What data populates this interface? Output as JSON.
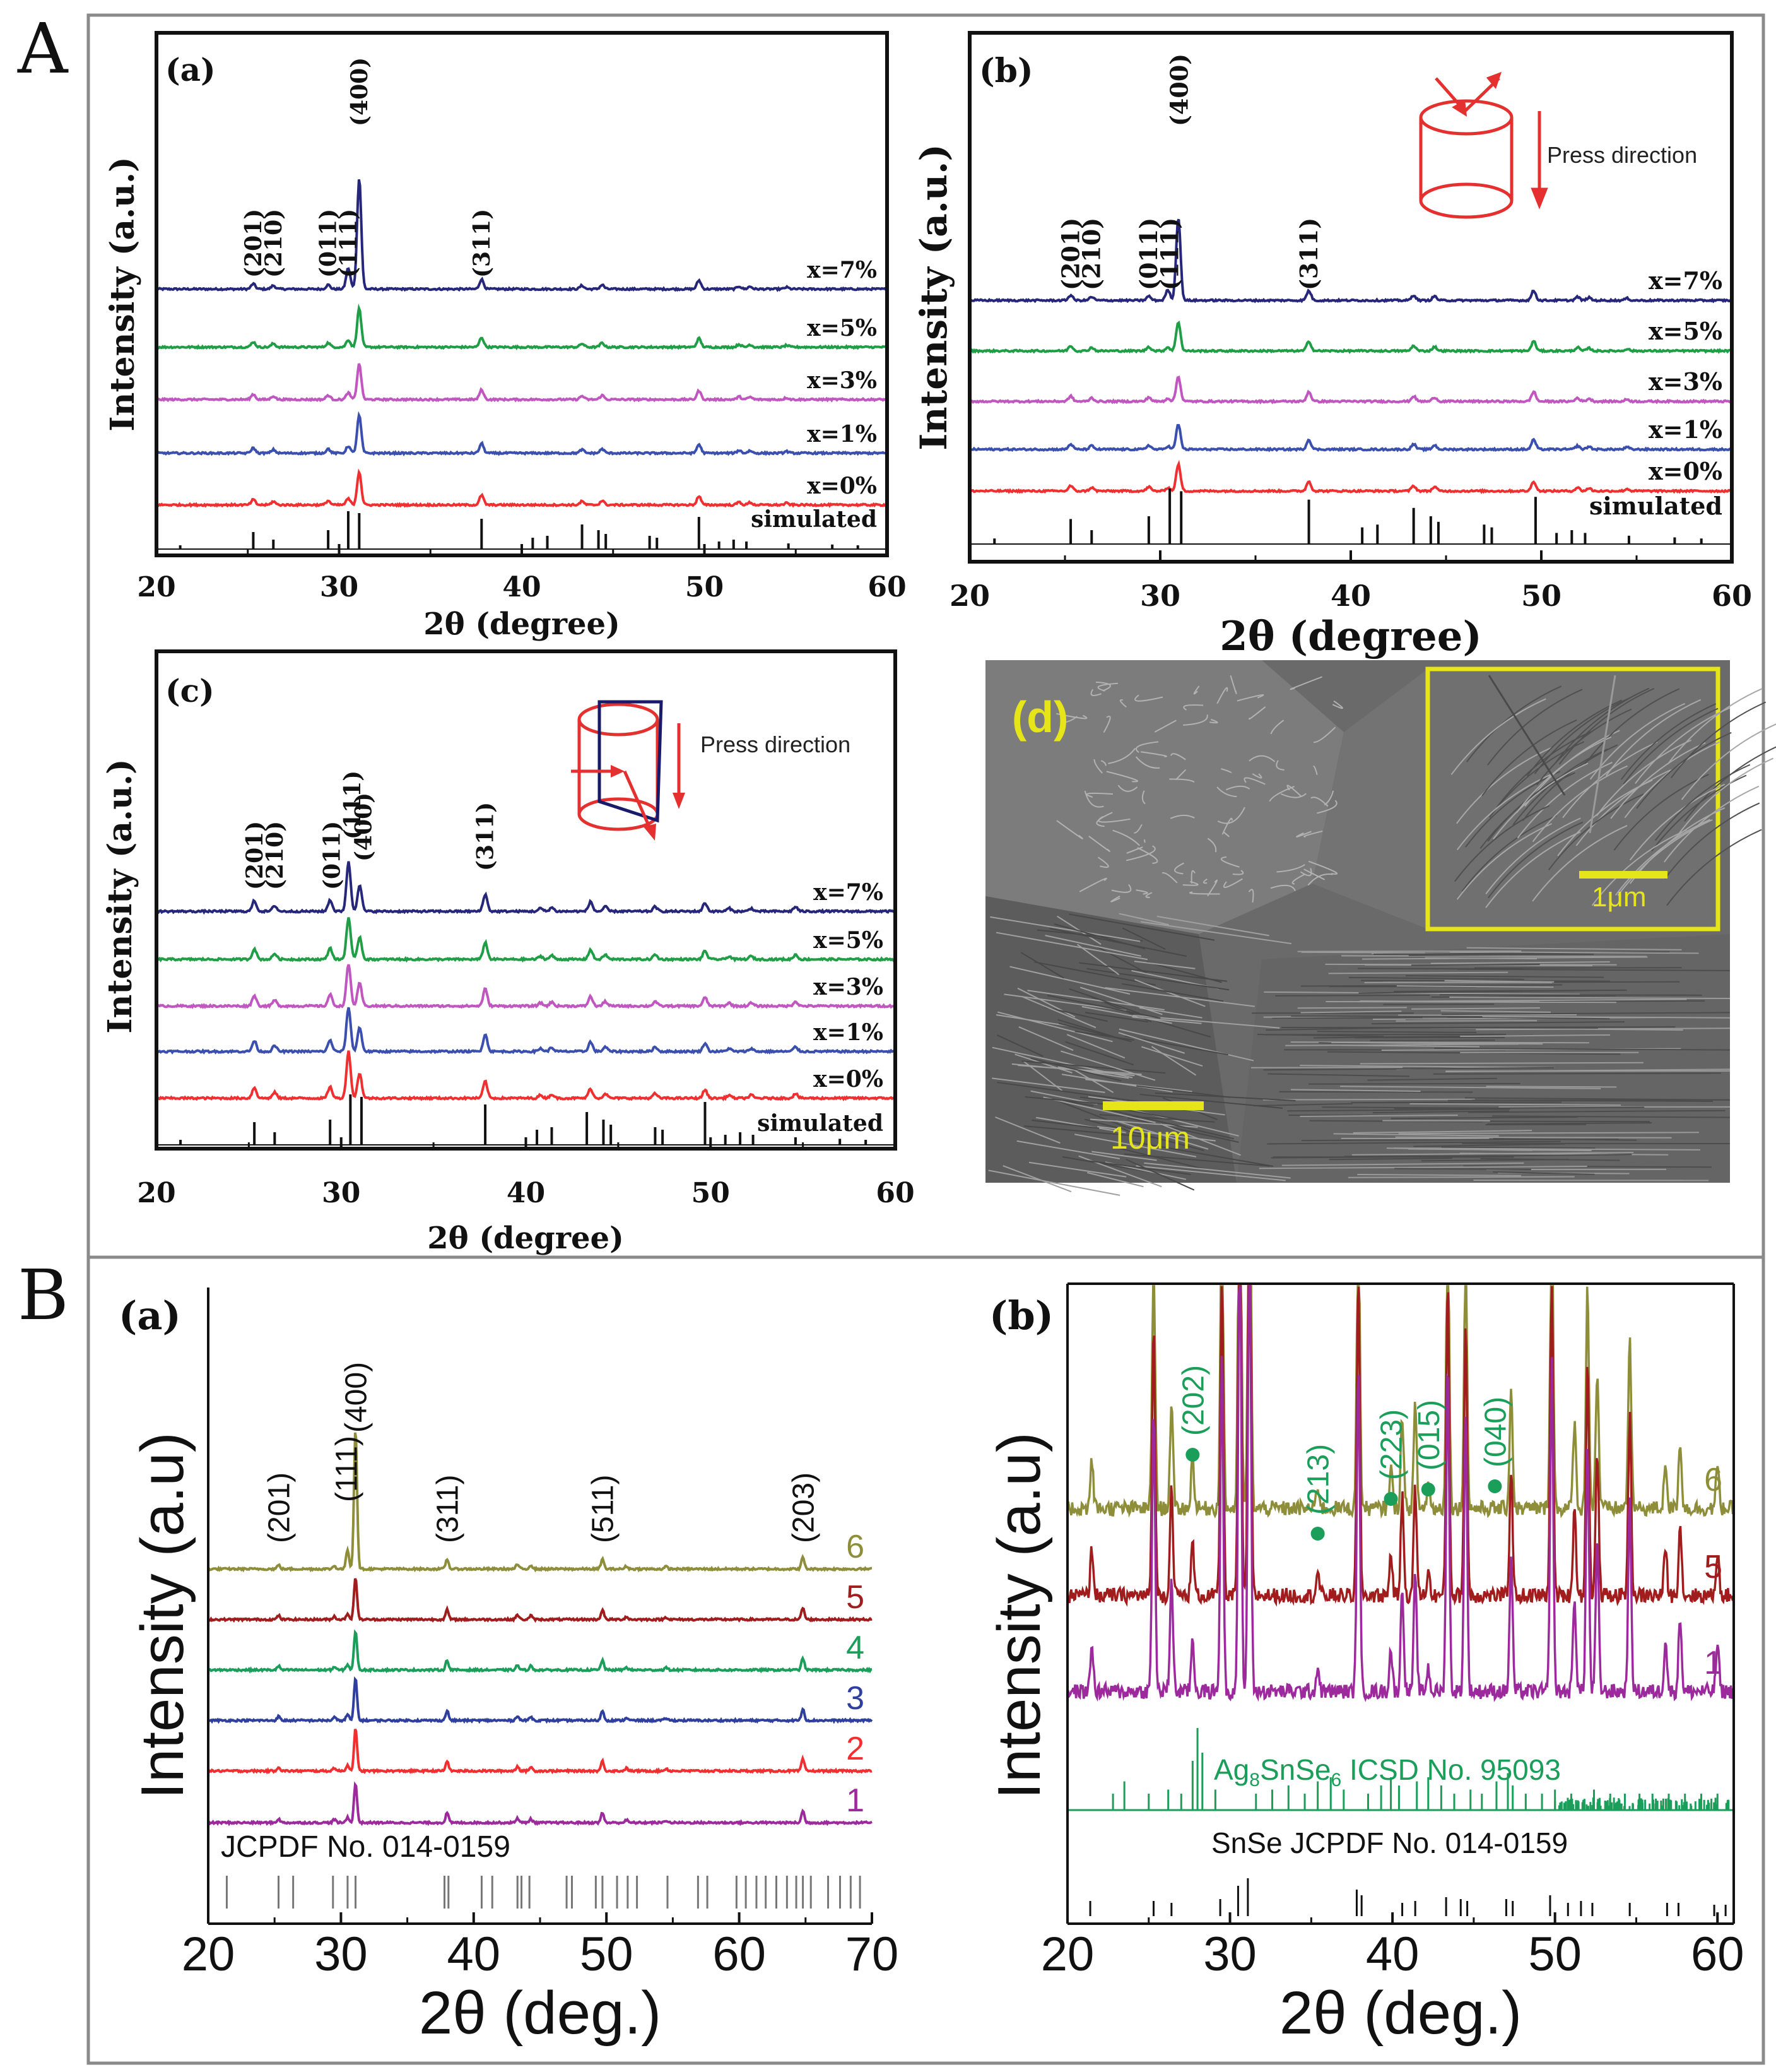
{
  "section_labels": {
    "A": "A",
    "B": "B"
  },
  "colors": {
    "black": "#111111",
    "navy": "#26267a",
    "green": "#1f9e45",
    "magenta": "#c056c0",
    "blue": "#3a4fae",
    "red": "#f03030",
    "olive": "#8e8e3a",
    "darkred": "#a11d1d",
    "purple": "#9c2a9c",
    "bgreen": "#1a9e5a",
    "blue3": "#2f3f9e",
    "yellow": "#e5e51a"
  },
  "chart_data": [
    {
      "id": "Aa",
      "type": "line",
      "panel_label": "(a)",
      "xlabel": "2θ (degree)",
      "ylabel": "Intensity (a.u.)",
      "xlim": [
        20,
        60
      ],
      "xticks": [
        "20",
        "30",
        "40",
        "50",
        "60"
      ],
      "main_peaks": [
        [
          30.5,
          0.6
        ],
        [
          31.1,
          3.2
        ]
      ],
      "minor_peaks": [
        [
          25.3,
          0.15
        ],
        [
          26.4,
          0.1
        ],
        [
          29.4,
          0.12
        ],
        [
          37.8,
          0.28
        ],
        [
          43.3,
          0.1
        ],
        [
          44.4,
          0.12
        ],
        [
          49.7,
          0.25
        ],
        [
          51.9,
          0.08
        ],
        [
          52.5,
          0.07
        ],
        [
          54.5,
          0.05
        ]
      ],
      "series": [
        {
          "name": "x=7%",
          "color_key": "navy"
        },
        {
          "name": "x=5%",
          "color_key": "green"
        },
        {
          "name": "x=3%",
          "color_key": "magenta"
        },
        {
          "name": "x=1%",
          "color_key": "blue"
        },
        {
          "name": "x=0%",
          "color_key": "red"
        }
      ],
      "simulated_label": "simulated",
      "sticks": [
        [
          21.3,
          0.1
        ],
        [
          25.3,
          0.45
        ],
        [
          26.4,
          0.25
        ],
        [
          29.4,
          0.5
        ],
        [
          30.5,
          1.0
        ],
        [
          31.1,
          0.95
        ],
        [
          37.8,
          0.8
        ],
        [
          40.6,
          0.3
        ],
        [
          41.4,
          0.35
        ],
        [
          43.3,
          0.65
        ],
        [
          44.2,
          0.5
        ],
        [
          44.6,
          0.4
        ],
        [
          47.0,
          0.35
        ],
        [
          47.4,
          0.3
        ],
        [
          49.7,
          0.85
        ],
        [
          50.8,
          0.2
        ],
        [
          51.6,
          0.25
        ],
        [
          52.3,
          0.2
        ],
        [
          54.6,
          0.15
        ],
        [
          57.0,
          0.12
        ],
        [
          58.4,
          0.1
        ]
      ],
      "hkl": [
        {
          "label": "(201)",
          "x": 25.3
        },
        {
          "label": "(210)",
          "x": 26.4
        },
        {
          "label": "(011)",
          "x": 29.4
        },
        {
          "label": "(111)",
          "x": 30.5
        },
        {
          "label": "(400)",
          "x": 31.1
        },
        {
          "label": "(311)",
          "x": 37.8
        }
      ]
    },
    {
      "id": "Ab",
      "type": "line",
      "panel_label": "(b)",
      "xlabel": "2θ (degree)",
      "ylabel": "Intensity (a.u.)",
      "xlim": [
        20,
        60
      ],
      "xticks": [
        "20",
        "30",
        "40",
        "50",
        "60"
      ],
      "main_peaks": [
        [
          30.4,
          0.3
        ],
        [
          30.95,
          2.4
        ]
      ],
      "minor_peaks": [
        [
          25.3,
          0.15
        ],
        [
          26.4,
          0.1
        ],
        [
          29.4,
          0.12
        ],
        [
          37.8,
          0.28
        ],
        [
          43.3,
          0.15
        ],
        [
          44.4,
          0.12
        ],
        [
          49.6,
          0.28
        ],
        [
          51.9,
          0.1
        ],
        [
          52.5,
          0.08
        ],
        [
          54.5,
          0.06
        ]
      ],
      "series": [
        {
          "name": "x=7%",
          "color_key": "navy"
        },
        {
          "name": "x=5%",
          "color_key": "green"
        },
        {
          "name": "x=3%",
          "color_key": "magenta"
        },
        {
          "name": "x=1%",
          "color_key": "blue"
        },
        {
          "name": "x=0%",
          "color_key": "red"
        }
      ],
      "simulated_label": "simulated",
      "sticks": [
        [
          21.3,
          0.1
        ],
        [
          25.3,
          0.45
        ],
        [
          26.4,
          0.25
        ],
        [
          29.4,
          0.5
        ],
        [
          30.5,
          1.0
        ],
        [
          31.1,
          0.95
        ],
        [
          37.8,
          0.8
        ],
        [
          40.6,
          0.3
        ],
        [
          41.4,
          0.35
        ],
        [
          43.3,
          0.65
        ],
        [
          44.2,
          0.5
        ],
        [
          44.6,
          0.4
        ],
        [
          47.0,
          0.35
        ],
        [
          47.4,
          0.3
        ],
        [
          49.7,
          0.85
        ],
        [
          50.8,
          0.2
        ],
        [
          51.6,
          0.25
        ],
        [
          52.3,
          0.2
        ],
        [
          54.6,
          0.15
        ],
        [
          57.0,
          0.12
        ],
        [
          58.4,
          0.1
        ]
      ],
      "hkl": [
        {
          "label": "(201)",
          "x": 25.3
        },
        {
          "label": "(210)",
          "x": 26.4
        },
        {
          "label": "(011)",
          "x": 29.4
        },
        {
          "label": "(111)",
          "x": 30.5
        },
        {
          "label": "(400)",
          "x": 31.0
        },
        {
          "label": "(311)",
          "x": 37.8
        }
      ],
      "inset_label": "Press direction"
    },
    {
      "id": "Ac",
      "type": "line",
      "panel_label": "(c)",
      "xlabel": "2θ (degree)",
      "ylabel": "Intensity (a.u.)",
      "xlim": [
        20,
        60
      ],
      "xticks": [
        "20",
        "30",
        "40",
        "50",
        "60"
      ],
      "main_peaks": [
        [
          30.4,
          1.3
        ],
        [
          31.0,
          0.7
        ]
      ],
      "minor_peaks": [
        [
          25.3,
          0.28
        ],
        [
          26.4,
          0.15
        ],
        [
          29.4,
          0.3
        ],
        [
          37.8,
          0.45
        ],
        [
          40.8,
          0.08
        ],
        [
          41.4,
          0.1
        ],
        [
          43.5,
          0.25
        ],
        [
          44.3,
          0.12
        ],
        [
          47.0,
          0.12
        ],
        [
          49.7,
          0.22
        ],
        [
          51.0,
          0.08
        ],
        [
          52.2,
          0.08
        ],
        [
          54.6,
          0.12
        ]
      ],
      "series": [
        {
          "name": "x=7%",
          "color_key": "navy"
        },
        {
          "name": "x=5%",
          "color_key": "green"
        },
        {
          "name": "x=3%",
          "color_key": "magenta"
        },
        {
          "name": "x=1%",
          "color_key": "blue"
        },
        {
          "name": "x=0%",
          "color_key": "red"
        }
      ],
      "simulated_label": "simulated",
      "sticks": [
        [
          21.3,
          0.1
        ],
        [
          25.3,
          0.45
        ],
        [
          26.4,
          0.25
        ],
        [
          29.4,
          0.5
        ],
        [
          30.5,
          1.0
        ],
        [
          31.1,
          0.95
        ],
        [
          37.8,
          0.8
        ],
        [
          40.6,
          0.3
        ],
        [
          41.4,
          0.35
        ],
        [
          43.3,
          0.65
        ],
        [
          44.2,
          0.5
        ],
        [
          44.6,
          0.4
        ],
        [
          47.0,
          0.35
        ],
        [
          47.4,
          0.3
        ],
        [
          49.7,
          0.85
        ],
        [
          50.8,
          0.2
        ],
        [
          51.6,
          0.25
        ],
        [
          52.3,
          0.2
        ],
        [
          54.6,
          0.15
        ],
        [
          57.0,
          0.12
        ],
        [
          58.4,
          0.1
        ]
      ],
      "hkl": [
        {
          "label": "(201)",
          "x": 25.3
        },
        {
          "label": "(210)",
          "x": 26.4
        },
        {
          "label": "(011)",
          "x": 29.5
        },
        {
          "label": "(111)",
          "x": 30.6
        },
        {
          "label": "(400)",
          "x": 31.2
        },
        {
          "label": "(311)",
          "x": 37.8
        }
      ],
      "inset_label": "Press direction"
    },
    {
      "id": "Ba",
      "type": "line",
      "panel_label": "(a)",
      "xlabel": "2θ (deg.)",
      "ylabel": "Intensity (a.u)",
      "xlim": [
        20,
        70
      ],
      "xticks": [
        "20",
        "30",
        "40",
        "50",
        "60",
        "70"
      ],
      "main_peaks": [
        [
          30.5,
          0.5
        ],
        [
          31.1,
          3.6
        ]
      ],
      "minor_peaks": [
        [
          25.3,
          0.1
        ],
        [
          29.5,
          0.08
        ],
        [
          38.0,
          0.25
        ],
        [
          43.3,
          0.12
        ],
        [
          44.3,
          0.1
        ],
        [
          49.7,
          0.25
        ],
        [
          51.5,
          0.07
        ],
        [
          54.5,
          0.06
        ],
        [
          64.8,
          0.3
        ]
      ],
      "series": [
        {
          "name": "6",
          "color_key": "olive"
        },
        {
          "name": "5",
          "color_key": "darkred"
        },
        {
          "name": "4",
          "color_key": "bgreen"
        },
        {
          "name": "3",
          "color_key": "blue3"
        },
        {
          "name": "2",
          "color_key": "red"
        },
        {
          "name": "1",
          "color_key": "purple"
        }
      ],
      "reference_label": "JCPDF No. 014-0159",
      "sticks": [
        21.4,
        25.3,
        26.4,
        29.4,
        30.5,
        31.1,
        37.8,
        38.1,
        40.6,
        41.4,
        43.3,
        43.6,
        44.2,
        47.0,
        47.4,
        49.2,
        49.7,
        50.8,
        51.6,
        52.3,
        54.6,
        56.9,
        57.6,
        59.8,
        60.5,
        61.3,
        62.0,
        62.8,
        63.6,
        64.3,
        64.8,
        65.4,
        66.7,
        67.6,
        68.4,
        69.1
      ],
      "hkl": [
        {
          "label": "(201)",
          "x": 25.3
        },
        {
          "label": "(111)",
          "x": 30.4
        },
        {
          "label": "(400)",
          "x": 31.1
        },
        {
          "label": "(311)",
          "x": 38.0
        },
        {
          "label": "(511)",
          "x": 49.7
        },
        {
          "label": "(203)",
          "x": 64.8
        }
      ]
    },
    {
      "id": "Bb",
      "type": "line",
      "panel_label": "(b)",
      "xlabel": "2θ (deg.)",
      "ylabel": "Intensity (a.u)",
      "xlim": [
        20,
        61
      ],
      "xticks": [
        "20",
        "30",
        "40",
        "50",
        "60"
      ],
      "main_peaks": [
        [
          25.3,
          3.0
        ],
        [
          26.4,
          1.2
        ],
        [
          29.5,
          3.5
        ],
        [
          30.6,
          5.0
        ],
        [
          31.2,
          5.0
        ],
        [
          37.9,
          3.5
        ],
        [
          40.6,
          1.1
        ],
        [
          41.4,
          1.2
        ],
        [
          43.4,
          3.5
        ],
        [
          44.5,
          3.0
        ],
        [
          47.3,
          1.4
        ],
        [
          49.8,
          3.5
        ],
        [
          51.2,
          1.0
        ],
        [
          52.0,
          2.6
        ],
        [
          52.6,
          1.6
        ],
        [
          54.6,
          2.0
        ],
        [
          56.8,
          0.55
        ],
        [
          57.7,
          0.8
        ],
        [
          60.0,
          0.5
        ]
      ],
      "minor_peaks": [
        [
          21.5,
          0.5
        ],
        [
          27.7,
          0.55
        ],
        [
          35.4,
          0.25
        ],
        [
          39.9,
          0.45
        ],
        [
          42.2,
          0.25
        ]
      ],
      "series": [
        {
          "name": "6",
          "color_key": "olive"
        },
        {
          "name": "5",
          "color_key": "darkred"
        },
        {
          "name": "1",
          "color_key": "purple"
        }
      ],
      "ref1_label": "ICSD No. 95093",
      "ref2_label": "SnSe JCPDF No. 014-0159",
      "sticks_ag8": [
        [
          22.8,
          0.2
        ],
        [
          23.5,
          0.35
        ],
        [
          25.0,
          0.2
        ],
        [
          26.2,
          0.25
        ],
        [
          27.0,
          0.2
        ],
        [
          27.7,
          0.6
        ],
        [
          28.0,
          1.0
        ],
        [
          28.3,
          0.7
        ],
        [
          29.1,
          0.25
        ],
        [
          31.6,
          0.2
        ],
        [
          32.6,
          0.25
        ],
        [
          33.6,
          0.3
        ],
        [
          34.6,
          0.2
        ],
        [
          35.4,
          0.35
        ],
        [
          36.2,
          0.4
        ],
        [
          37.0,
          0.25
        ],
        [
          38.5,
          0.2
        ],
        [
          39.3,
          0.3
        ],
        [
          39.9,
          0.4
        ],
        [
          40.4,
          0.3
        ],
        [
          41.5,
          0.35
        ],
        [
          42.2,
          0.4
        ],
        [
          43.0,
          0.3
        ],
        [
          43.8,
          0.2
        ],
        [
          44.8,
          0.25
        ],
        [
          45.5,
          0.2
        ],
        [
          46.4,
          0.35
        ],
        [
          47.1,
          0.45
        ],
        [
          47.4,
          0.3
        ],
        [
          48.2,
          0.2
        ],
        [
          49.2,
          0.2
        ],
        [
          50.0,
          0.25
        ],
        [
          51.0,
          0.2
        ],
        [
          52.4,
          0.25
        ],
        [
          53.4,
          0.2
        ],
        [
          54.3,
          0.2
        ],
        [
          55.2,
          0.2
        ],
        [
          56.0,
          0.2
        ],
        [
          57.0,
          0.2
        ],
        [
          58.0,
          0.2
        ],
        [
          59.0,
          0.2
        ],
        [
          60.0,
          0.2
        ]
      ],
      "sticks_snse": [
        [
          21.4,
          0.4
        ],
        [
          25.3,
          0.4
        ],
        [
          26.4,
          0.35
        ],
        [
          29.4,
          0.45
        ],
        [
          30.5,
          0.8
        ],
        [
          31.1,
          1.0
        ],
        [
          37.8,
          0.7
        ],
        [
          38.1,
          0.55
        ],
        [
          40.6,
          0.35
        ],
        [
          41.4,
          0.4
        ],
        [
          43.3,
          0.5
        ],
        [
          44.2,
          0.45
        ],
        [
          44.6,
          0.4
        ],
        [
          47.0,
          0.45
        ],
        [
          47.4,
          0.4
        ],
        [
          49.7,
          0.55
        ],
        [
          50.8,
          0.35
        ],
        [
          51.6,
          0.4
        ],
        [
          52.3,
          0.35
        ],
        [
          54.6,
          0.35
        ],
        [
          56.9,
          0.35
        ],
        [
          57.6,
          0.35
        ],
        [
          59.8,
          0.3
        ],
        [
          60.5,
          0.3
        ]
      ],
      "hkl": [
        {
          "label": "(202)",
          "x": 27.7
        },
        {
          "label": "(213)",
          "x": 35.4
        },
        {
          "label": "(223)",
          "x": 39.9
        },
        {
          "label": "(015)",
          "x": 42.2
        },
        {
          "label": "(040)",
          "x": 46.3
        }
      ]
    }
  ],
  "sem": {
    "panel_label": "(d)",
    "scale_main": "10μm",
    "scale_inset": "1μm"
  }
}
